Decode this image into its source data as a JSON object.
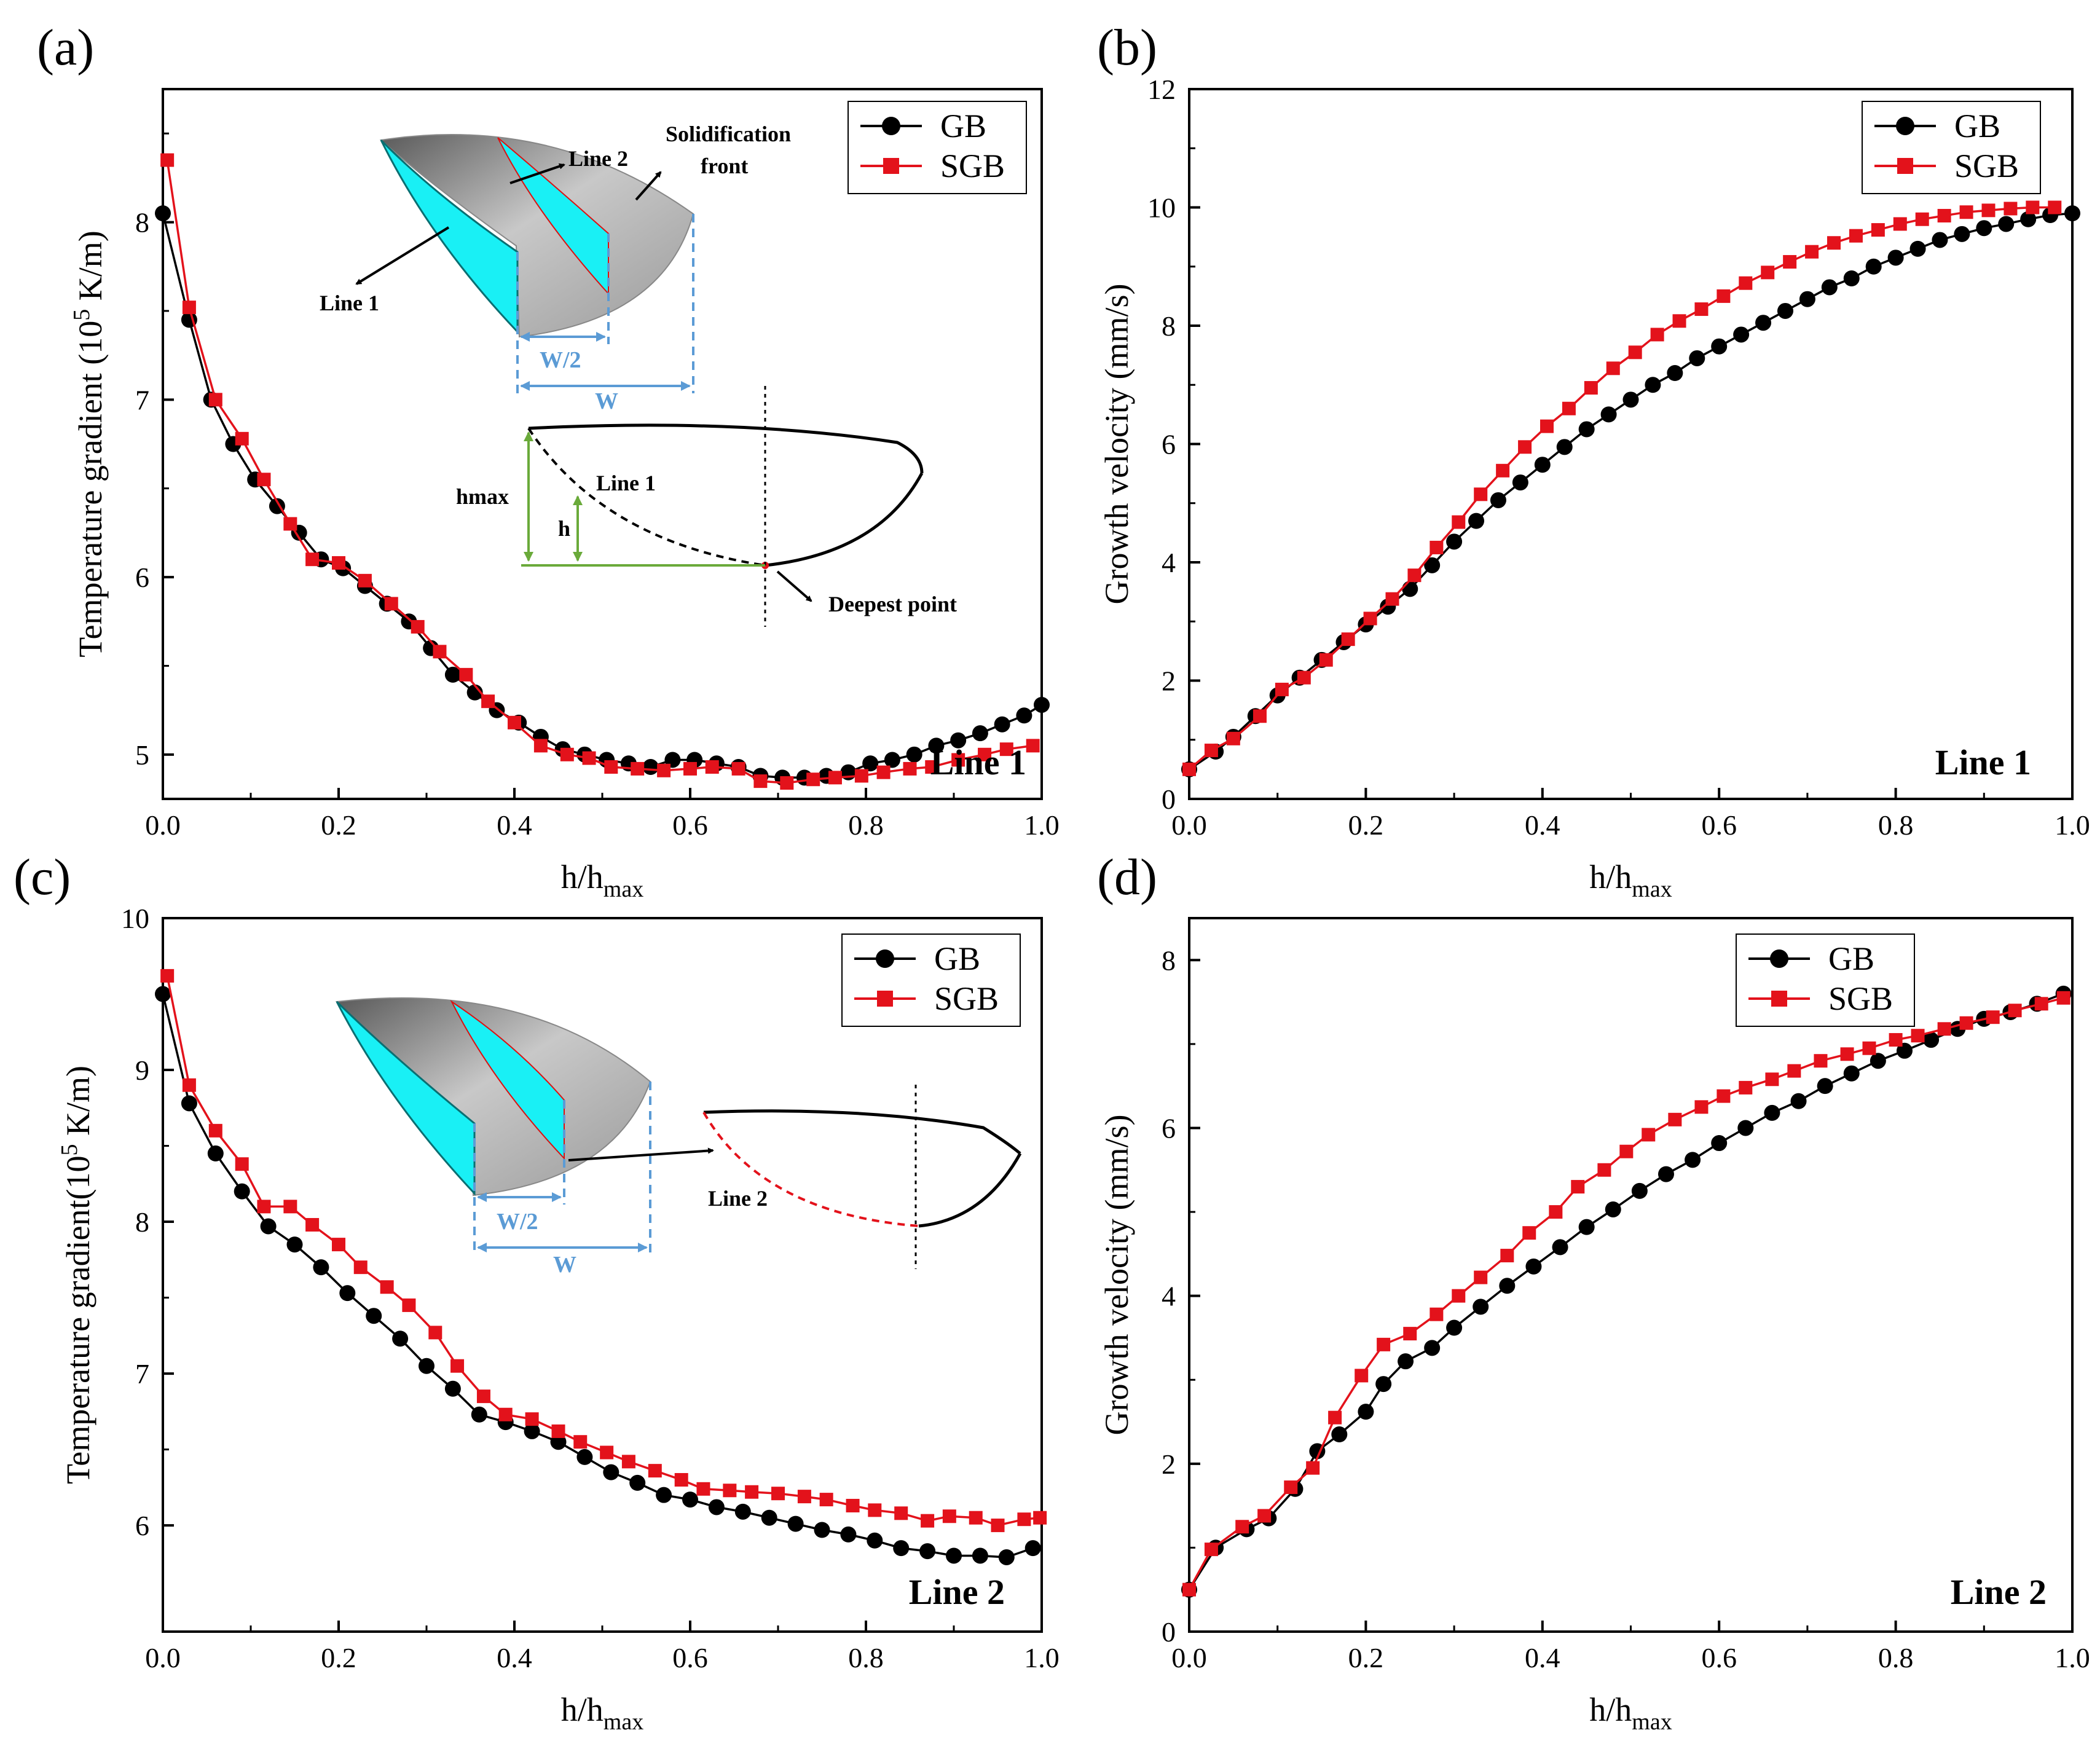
{
  "colors": {
    "gb": "#000000",
    "sgb": "#e3121b",
    "cyan": "#19f0f5",
    "dim": "#5b9bd5",
    "green": "#6aaa3a"
  },
  "legend": {
    "gb": "GB",
    "sgb": "SGB"
  },
  "insets": {
    "a": {
      "line1": "Line 1",
      "line2": "Line 2",
      "solid1": "Solidification",
      "solid2": "front",
      "w2": "W/2",
      "w": "W",
      "hmax": "hmax",
      "h": "h",
      "profile_line1": "Line 1",
      "deepest": "Deepest point"
    },
    "c": {
      "w2": "W/2",
      "w": "W",
      "profile_line2": "Line 2"
    }
  },
  "chart_data": [
    {
      "panel": "(a)",
      "type": "line",
      "tag": "Line 1",
      "xlabel": "h/h",
      "xlabel_sub": "max",
      "ylabel_pre": "Temperature gradient (10",
      "ylabel_sup": "5",
      "ylabel_post": " K/m)",
      "xlim": [
        0,
        1.0
      ],
      "ylim": [
        4.75,
        8.75
      ],
      "xticks": [
        "0.0",
        "0.2",
        "0.4",
        "0.6",
        "0.8",
        "1.0"
      ],
      "yticks": [
        "5",
        "6",
        "7",
        "8"
      ],
      "series": [
        {
          "name": "GB",
          "x": [
            0.0,
            0.03,
            0.055,
            0.08,
            0.105,
            0.13,
            0.155,
            0.18,
            0.205,
            0.23,
            0.255,
            0.28,
            0.305,
            0.33,
            0.355,
            0.38,
            0.405,
            0.43,
            0.455,
            0.48,
            0.505,
            0.53,
            0.555,
            0.58,
            0.605,
            0.63,
            0.655,
            0.68,
            0.705,
            0.73,
            0.755,
            0.78,
            0.805,
            0.83,
            0.855,
            0.88,
            0.905,
            0.93,
            0.955,
            0.98,
            1.0
          ],
          "y": [
            8.05,
            7.45,
            7.0,
            6.75,
            6.55,
            6.4,
            6.25,
            6.1,
            6.05,
            5.95,
            5.85,
            5.75,
            5.6,
            5.45,
            5.35,
            5.25,
            5.18,
            5.1,
            5.03,
            5.0,
            4.97,
            4.95,
            4.93,
            4.97,
            4.97,
            4.95,
            4.93,
            4.88,
            4.87,
            4.87,
            4.88,
            4.9,
            4.95,
            4.97,
            5.0,
            5.05,
            5.08,
            5.12,
            5.17,
            5.22,
            5.28
          ]
        },
        {
          "name": "SGB",
          "x": [
            0.005,
            0.03,
            0.06,
            0.09,
            0.115,
            0.145,
            0.17,
            0.2,
            0.23,
            0.26,
            0.29,
            0.315,
            0.345,
            0.37,
            0.4,
            0.43,
            0.46,
            0.485,
            0.51,
            0.54,
            0.57,
            0.6,
            0.625,
            0.655,
            0.68,
            0.71,
            0.74,
            0.765,
            0.795,
            0.82,
            0.85,
            0.875,
            0.905,
            0.935,
            0.96,
            0.99
          ],
          "y": [
            8.35,
            7.52,
            7.0,
            6.78,
            6.55,
            6.3,
            6.1,
            6.08,
            5.98,
            5.85,
            5.72,
            5.58,
            5.45,
            5.3,
            5.18,
            5.05,
            5.0,
            4.98,
            4.93,
            4.92,
            4.91,
            4.92,
            4.93,
            4.92,
            4.85,
            4.84,
            4.86,
            4.87,
            4.88,
            4.9,
            4.92,
            4.93,
            4.97,
            5.0,
            5.03,
            5.05
          ]
        }
      ]
    },
    {
      "panel": "(b)",
      "type": "line",
      "tag": "Line 1",
      "xlabel": "h/h",
      "xlabel_sub": "max",
      "ylabel": "Growth velocity (mm/s)",
      "xlim": [
        0,
        1.0
      ],
      "ylim": [
        0,
        12
      ],
      "xticks": [
        "0.0",
        "0.2",
        "0.4",
        "0.6",
        "0.8",
        "1.0"
      ],
      "yticks": [
        "0",
        "2",
        "4",
        "6",
        "8",
        "10",
        "12"
      ],
      "series": [
        {
          "name": "GB",
          "x": [
            0.0,
            0.03,
            0.05,
            0.075,
            0.1,
            0.125,
            0.15,
            0.175,
            0.2,
            0.225,
            0.25,
            0.275,
            0.3,
            0.325,
            0.35,
            0.375,
            0.4,
            0.425,
            0.45,
            0.475,
            0.5,
            0.525,
            0.55,
            0.575,
            0.6,
            0.625,
            0.65,
            0.675,
            0.7,
            0.725,
            0.75,
            0.775,
            0.8,
            0.825,
            0.85,
            0.875,
            0.9,
            0.925,
            0.95,
            0.975,
            1.0
          ],
          "y": [
            0.5,
            0.8,
            1.05,
            1.4,
            1.75,
            2.05,
            2.35,
            2.65,
            2.95,
            3.25,
            3.55,
            3.95,
            4.35,
            4.7,
            5.05,
            5.35,
            5.65,
            5.95,
            6.25,
            6.5,
            6.75,
            7.0,
            7.2,
            7.45,
            7.65,
            7.85,
            8.05,
            8.25,
            8.45,
            8.65,
            8.8,
            9.0,
            9.15,
            9.3,
            9.45,
            9.55,
            9.65,
            9.72,
            9.8,
            9.87,
            9.9
          ]
        },
        {
          "name": "SGB",
          "x": [
            0.0,
            0.025,
            0.05,
            0.08,
            0.105,
            0.13,
            0.155,
            0.18,
            0.205,
            0.23,
            0.255,
            0.28,
            0.305,
            0.33,
            0.355,
            0.38,
            0.405,
            0.43,
            0.455,
            0.48,
            0.505,
            0.53,
            0.555,
            0.58,
            0.605,
            0.63,
            0.655,
            0.68,
            0.705,
            0.73,
            0.755,
            0.78,
            0.805,
            0.83,
            0.855,
            0.88,
            0.905,
            0.93,
            0.955,
            0.98
          ],
          "y": [
            0.5,
            0.82,
            1.02,
            1.4,
            1.85,
            2.05,
            2.35,
            2.7,
            3.05,
            3.38,
            3.78,
            4.25,
            4.68,
            5.15,
            5.55,
            5.95,
            6.3,
            6.6,
            6.95,
            7.28,
            7.55,
            7.85,
            8.08,
            8.28,
            8.5,
            8.72,
            8.9,
            9.08,
            9.25,
            9.4,
            9.52,
            9.62,
            9.72,
            9.8,
            9.86,
            9.92,
            9.95,
            9.98,
            10.0,
            10.0
          ]
        }
      ]
    },
    {
      "panel": "(c)",
      "type": "line",
      "tag": "Line 2",
      "xlabel": "h/h",
      "xlabel_sub": "max",
      "ylabel_pre": "Temperature gradient(10",
      "ylabel_sup": "5",
      "ylabel_post": " K/m)",
      "xlim": [
        0,
        1.0
      ],
      "ylim": [
        5.3,
        10.0
      ],
      "xticks": [
        "0.0",
        "0.2",
        "0.4",
        "0.6",
        "0.8",
        "1.0"
      ],
      "yticks": [
        "6",
        "7",
        "8",
        "9",
        "10"
      ],
      "series": [
        {
          "name": "GB",
          "x": [
            0.0,
            0.03,
            0.06,
            0.09,
            0.12,
            0.15,
            0.18,
            0.21,
            0.24,
            0.27,
            0.3,
            0.33,
            0.36,
            0.39,
            0.42,
            0.45,
            0.48,
            0.51,
            0.54,
            0.57,
            0.6,
            0.63,
            0.66,
            0.69,
            0.72,
            0.75,
            0.78,
            0.81,
            0.84,
            0.87,
            0.9,
            0.93,
            0.96,
            0.99
          ],
          "y": [
            9.5,
            8.78,
            8.45,
            8.2,
            7.97,
            7.85,
            7.7,
            7.53,
            7.38,
            7.23,
            7.05,
            6.9,
            6.73,
            6.68,
            6.62,
            6.55,
            6.45,
            6.35,
            6.28,
            6.2,
            6.17,
            6.12,
            6.09,
            6.05,
            6.01,
            5.97,
            5.94,
            5.9,
            5.85,
            5.83,
            5.8,
            5.8,
            5.79,
            5.85
          ]
        },
        {
          "name": "SGB",
          "x": [
            0.005,
            0.03,
            0.06,
            0.09,
            0.115,
            0.145,
            0.17,
            0.2,
            0.225,
            0.255,
            0.28,
            0.31,
            0.335,
            0.365,
            0.39,
            0.42,
            0.45,
            0.475,
            0.505,
            0.53,
            0.56,
            0.59,
            0.615,
            0.645,
            0.67,
            0.7,
            0.73,
            0.755,
            0.785,
            0.81,
            0.84,
            0.87,
            0.895,
            0.925,
            0.95,
            0.98,
            0.998
          ],
          "y": [
            9.62,
            8.9,
            8.6,
            8.38,
            8.1,
            8.1,
            7.98,
            7.85,
            7.7,
            7.57,
            7.45,
            7.27,
            7.05,
            6.85,
            6.73,
            6.7,
            6.62,
            6.55,
            6.48,
            6.42,
            6.36,
            6.3,
            6.24,
            6.23,
            6.22,
            6.21,
            6.19,
            6.17,
            6.13,
            6.1,
            6.08,
            6.03,
            6.06,
            6.05,
            6.0,
            6.04,
            6.05
          ]
        }
      ]
    },
    {
      "panel": "(d)",
      "type": "line",
      "tag": "Line 2",
      "xlabel": "h/h",
      "xlabel_sub": "max",
      "ylabel": "Growth velocity (mm/s)",
      "xlim": [
        0,
        1.0
      ],
      "ylim": [
        0,
        8.5
      ],
      "xticks": [
        "0.0",
        "0.2",
        "0.4",
        "0.6",
        "0.8",
        "1.0"
      ],
      "yticks": [
        "0",
        "2",
        "4",
        "6",
        "8"
      ],
      "series": [
        {
          "name": "GB",
          "x": [
            0.0,
            0.03,
            0.065,
            0.09,
            0.12,
            0.145,
            0.17,
            0.2,
            0.22,
            0.245,
            0.275,
            0.3,
            0.33,
            0.36,
            0.39,
            0.42,
            0.45,
            0.48,
            0.51,
            0.54,
            0.57,
            0.6,
            0.63,
            0.66,
            0.69,
            0.72,
            0.75,
            0.78,
            0.81,
            0.84,
            0.87,
            0.9,
            0.93,
            0.96,
            0.99
          ],
          "y": [
            0.5,
            1.0,
            1.22,
            1.35,
            1.7,
            2.15,
            2.35,
            2.62,
            2.95,
            3.22,
            3.38,
            3.62,
            3.87,
            4.12,
            4.35,
            4.58,
            4.82,
            5.03,
            5.25,
            5.45,
            5.62,
            5.82,
            6.0,
            6.18,
            6.32,
            6.5,
            6.65,
            6.8,
            6.92,
            7.05,
            7.18,
            7.3,
            7.38,
            7.48,
            7.6
          ]
        },
        {
          "name": "SGB",
          "x": [
            0.0,
            0.025,
            0.06,
            0.085,
            0.115,
            0.14,
            0.165,
            0.195,
            0.22,
            0.25,
            0.28,
            0.305,
            0.33,
            0.36,
            0.385,
            0.415,
            0.44,
            0.47,
            0.495,
            0.52,
            0.55,
            0.58,
            0.605,
            0.63,
            0.66,
            0.685,
            0.715,
            0.745,
            0.77,
            0.8,
            0.825,
            0.855,
            0.88,
            0.91,
            0.935,
            0.965,
            0.99
          ],
          "y": [
            0.5,
            0.98,
            1.25,
            1.38,
            1.72,
            1.95,
            2.55,
            3.05,
            3.42,
            3.55,
            3.78,
            4.0,
            4.22,
            4.48,
            4.75,
            5.0,
            5.3,
            5.5,
            5.72,
            5.92,
            6.1,
            6.25,
            6.38,
            6.48,
            6.58,
            6.68,
            6.8,
            6.88,
            6.95,
            7.05,
            7.1,
            7.18,
            7.25,
            7.32,
            7.4,
            7.48,
            7.55
          ]
        }
      ]
    }
  ]
}
